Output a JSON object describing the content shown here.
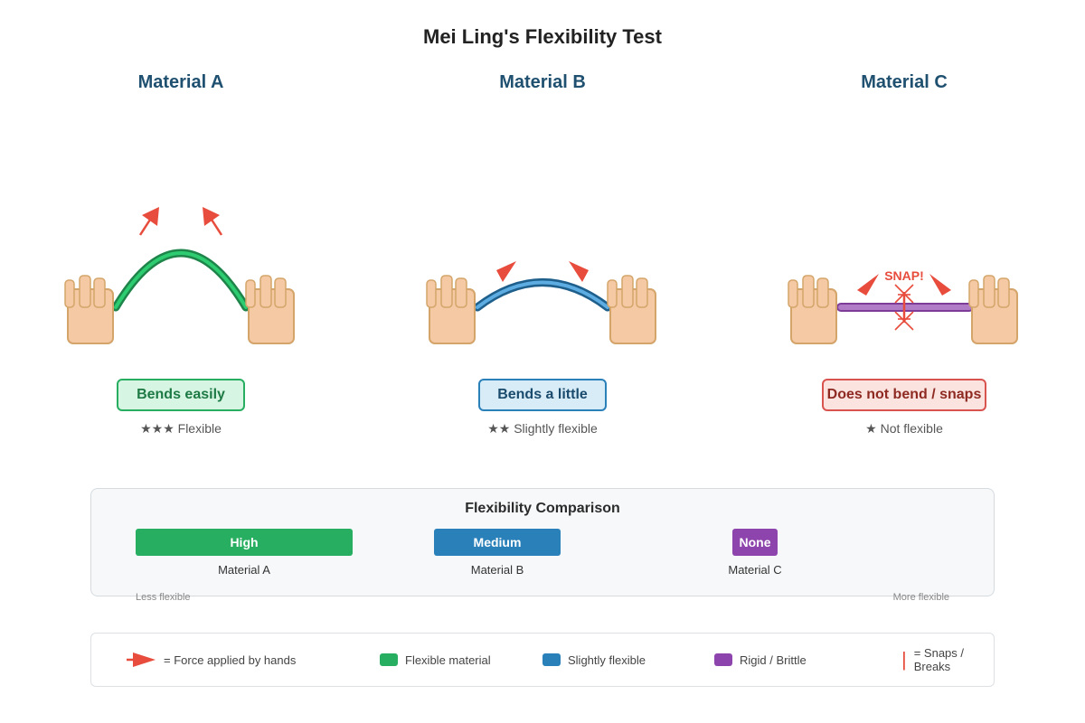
{
  "title": "Mei Ling's Flexibility Test",
  "colors": {
    "flexible": "#27ae60",
    "slightly": "#2a80b9",
    "rigid": "#8e44ad",
    "force": "#e74c3c",
    "hand": "#f5c9a3",
    "hand_outline": "#d4a56a"
  },
  "materials": [
    {
      "name": "Material A",
      "result": "Bends easily",
      "stars": "★★★",
      "rating": "Flexible"
    },
    {
      "name": "Material B",
      "result": "Bends a little",
      "stars": "★★",
      "rating": "Slightly flexible"
    },
    {
      "name": "Material C",
      "result": "Does not bend / snaps",
      "stars": "★",
      "rating": "Not flexible",
      "snap_label": "SNAP!"
    }
  ],
  "comparison": {
    "title": "Flexibility Comparison",
    "bars": [
      {
        "label": "High",
        "material": "Material A",
        "level": 1.0
      },
      {
        "label": "Medium",
        "material": "Material B",
        "level": 0.58
      },
      {
        "label": "None",
        "material": "Material C",
        "level": 0.2
      }
    ],
    "scale_low": "Less flexible",
    "scale_high": "More flexible"
  },
  "legend": {
    "force": "= Force applied by hands",
    "flexible": "Flexible material",
    "slightly": "Slightly flexible",
    "rigid": "Rigid / Brittle",
    "snaps": "= Snaps / Breaks"
  }
}
